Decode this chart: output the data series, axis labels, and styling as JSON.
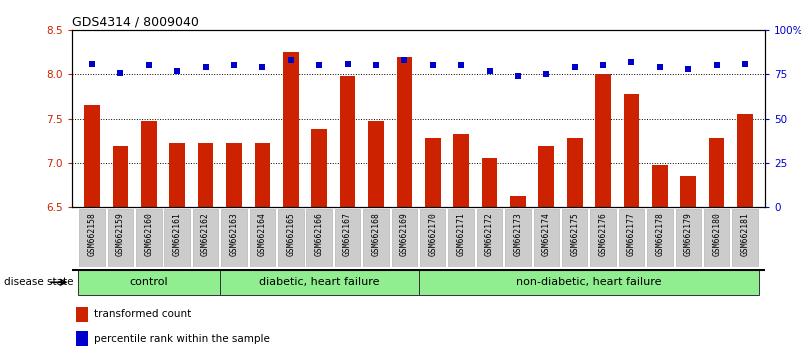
{
  "title": "GDS4314 / 8009040",
  "samples": [
    "GSM662158",
    "GSM662159",
    "GSM662160",
    "GSM662161",
    "GSM662162",
    "GSM662163",
    "GSM662164",
    "GSM662165",
    "GSM662166",
    "GSM662167",
    "GSM662168",
    "GSM662169",
    "GSM662170",
    "GSM662171",
    "GSM662172",
    "GSM662173",
    "GSM662174",
    "GSM662175",
    "GSM662176",
    "GSM662177",
    "GSM662178",
    "GSM662179",
    "GSM662180",
    "GSM662181"
  ],
  "bar_values": [
    7.65,
    7.19,
    7.47,
    7.22,
    7.22,
    7.22,
    7.22,
    8.25,
    7.38,
    7.98,
    7.47,
    8.2,
    7.28,
    7.33,
    7.05,
    6.62,
    7.19,
    7.28,
    8.0,
    7.78,
    6.97,
    6.85,
    7.28,
    7.55
  ],
  "dot_values": [
    81,
    76,
    80,
    77,
    79,
    80,
    79,
    83,
    80,
    81,
    80,
    83,
    80,
    80,
    77,
    74,
    75,
    79,
    80,
    82,
    79,
    78,
    80,
    81
  ],
  "group_boundaries": [
    0,
    5,
    12,
    24
  ],
  "group_labels": [
    "control",
    "diabetic, heart failure",
    "non-diabetic, heart failure"
  ],
  "group_color": "#90ee90",
  "bar_color": "#CC2200",
  "dot_color": "#0000CC",
  "ylim_left": [
    6.5,
    8.5
  ],
  "ylim_right": [
    0,
    100
  ],
  "yticks_left": [
    6.5,
    7.0,
    7.5,
    8.0,
    8.5
  ],
  "yticks_right": [
    0,
    25,
    50,
    75,
    100
  ],
  "yticklabels_right": [
    "0",
    "25",
    "50",
    "75",
    "100%"
  ],
  "hlines": [
    7.0,
    7.5,
    8.0
  ],
  "legend_bar_label": "transformed count",
  "legend_dot_label": "percentile rank within the sample",
  "disease_state_label": "disease state",
  "tick_bg_color": "#cccccc",
  "title_fontsize": 9,
  "label_fontsize": 5.8,
  "tick_fontsize": 7.5,
  "legend_fontsize": 7.5
}
